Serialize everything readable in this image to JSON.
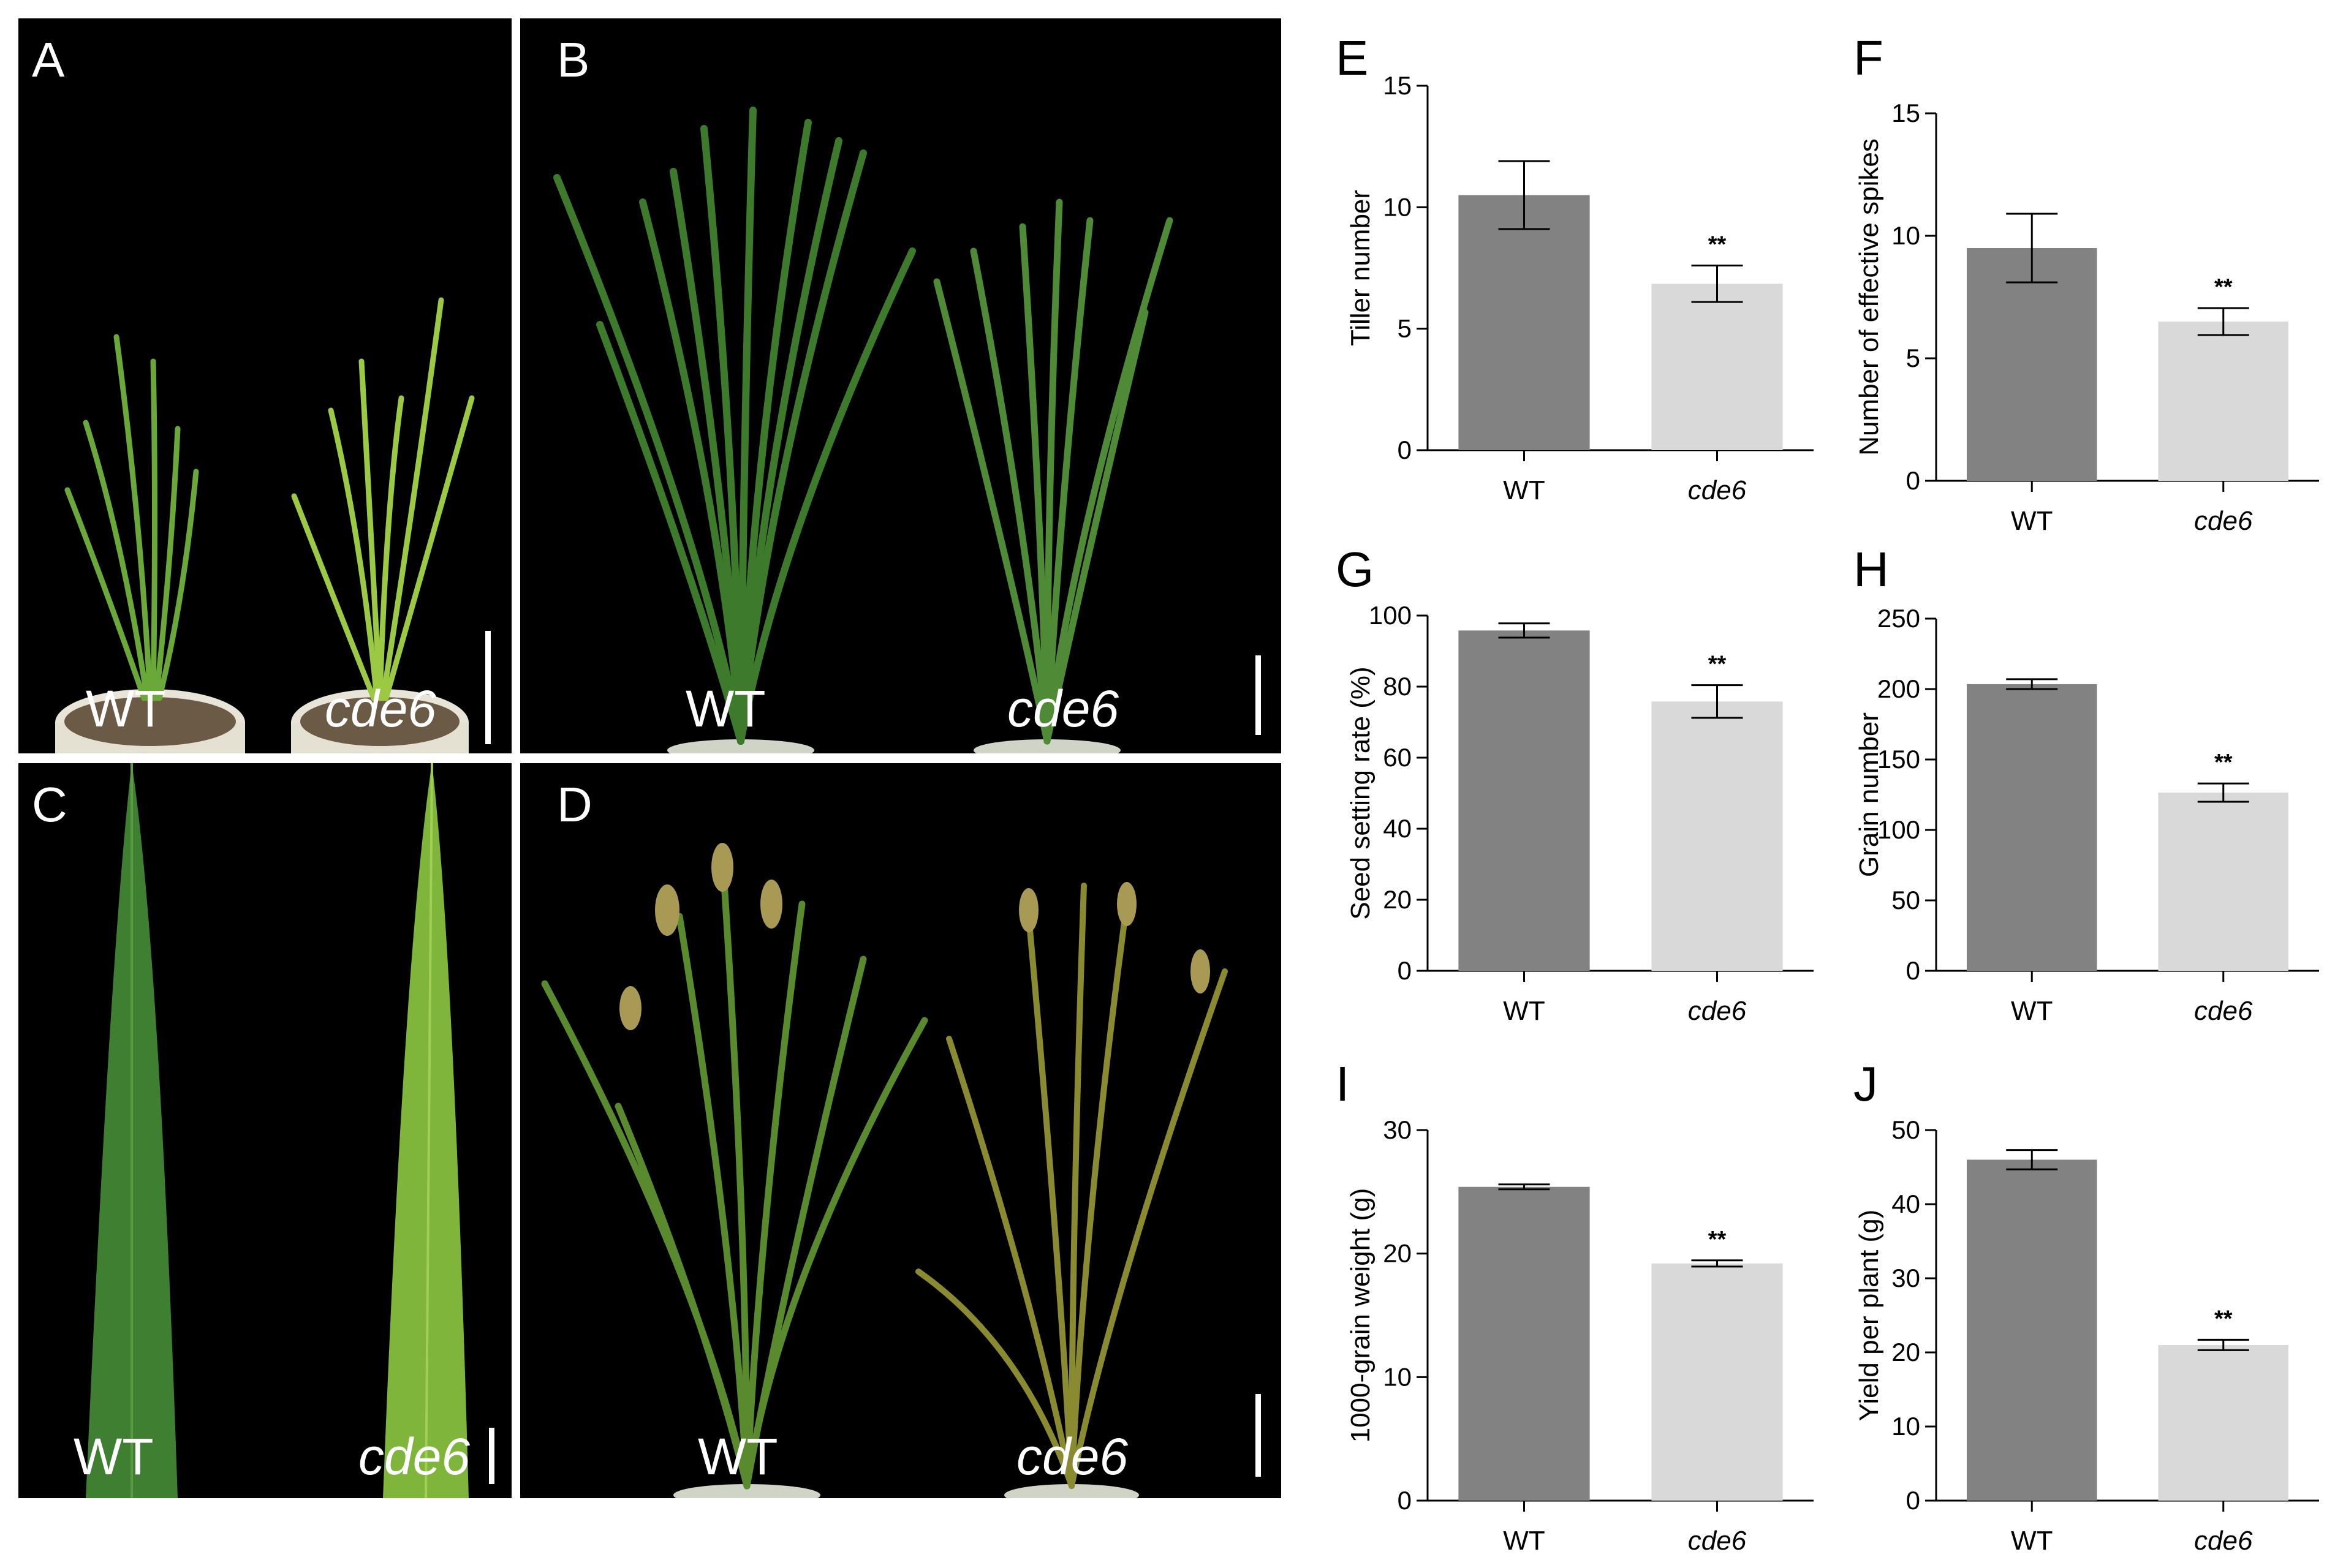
{
  "photos": [
    {
      "letter": "A",
      "left_label": "WT",
      "right_label": "cde6"
    },
    {
      "letter": "B",
      "left_label": "WT",
      "right_label": "cde6"
    },
    {
      "letter": "C",
      "left_label": "WT",
      "right_label": "cde6"
    },
    {
      "letter": "D",
      "left_label": "WT",
      "right_label": "cde6"
    }
  ],
  "colors": {
    "wt_bar": "#828282",
    "mutant_bar": "#d9d9d9",
    "leaf_dark": "#3d7a2c",
    "leaf_light": "#8fbd3e",
    "background": "#000000"
  },
  "chart_data": [
    {
      "letter": "E",
      "type": "bar",
      "ylabel": "Tiller number",
      "categories": [
        "WT",
        "cde6"
      ],
      "values": [
        10.5,
        6.85
      ],
      "errors": [
        1.4,
        0.75
      ],
      "ylim": [
        0,
        15
      ],
      "ticks": [
        0,
        5,
        10,
        15
      ],
      "annotations": [
        "",
        "**"
      ]
    },
    {
      "letter": "F",
      "type": "bar",
      "ylabel": "Number of effective spikes",
      "categories": [
        "WT",
        "cde6"
      ],
      "values": [
        9.5,
        6.5
      ],
      "errors": [
        1.4,
        0.55
      ],
      "ylim": [
        0,
        15
      ],
      "ticks": [
        0,
        5,
        10,
        15
      ],
      "annotations": [
        "",
        "**"
      ]
    },
    {
      "letter": "G",
      "type": "bar",
      "ylabel": "Seed setting rate (%)",
      "categories": [
        "WT",
        "cde6"
      ],
      "values": [
        95.8,
        75.8
      ],
      "errors": [
        2.0,
        4.6
      ],
      "ylim": [
        0,
        100
      ],
      "ticks": [
        0,
        20,
        40,
        60,
        80,
        100
      ],
      "annotations": [
        "",
        "**"
      ]
    },
    {
      "letter": "H",
      "type": "bar",
      "ylabel": "Grain number",
      "categories": [
        "WT",
        "cde6"
      ],
      "values": [
        203.5,
        126.5
      ],
      "errors": [
        3.5,
        6.5
      ],
      "ylim": [
        0,
        250
      ],
      "ticks": [
        0,
        50,
        100,
        150,
        200,
        250
      ],
      "annotations": [
        "",
        "**"
      ]
    },
    {
      "letter": "I",
      "type": "bar",
      "ylabel": "1000-grain weight (g)",
      "categories": [
        "WT",
        "cde6"
      ],
      "values": [
        25.4,
        19.2
      ],
      "errors": [
        0.2,
        0.25
      ],
      "ylim": [
        0,
        30
      ],
      "ticks": [
        0,
        10,
        20,
        30
      ],
      "annotations": [
        "",
        "**"
      ]
    },
    {
      "letter": "J",
      "type": "bar",
      "ylabel": "Yield per plant (g)",
      "categories": [
        "WT",
        "cde6"
      ],
      "values": [
        46.0,
        21.0
      ],
      "errors": [
        1.3,
        0.7
      ],
      "ylim": [
        0,
        50
      ],
      "ticks": [
        0,
        10,
        20,
        30,
        40,
        50
      ],
      "annotations": [
        "",
        "**"
      ]
    }
  ]
}
